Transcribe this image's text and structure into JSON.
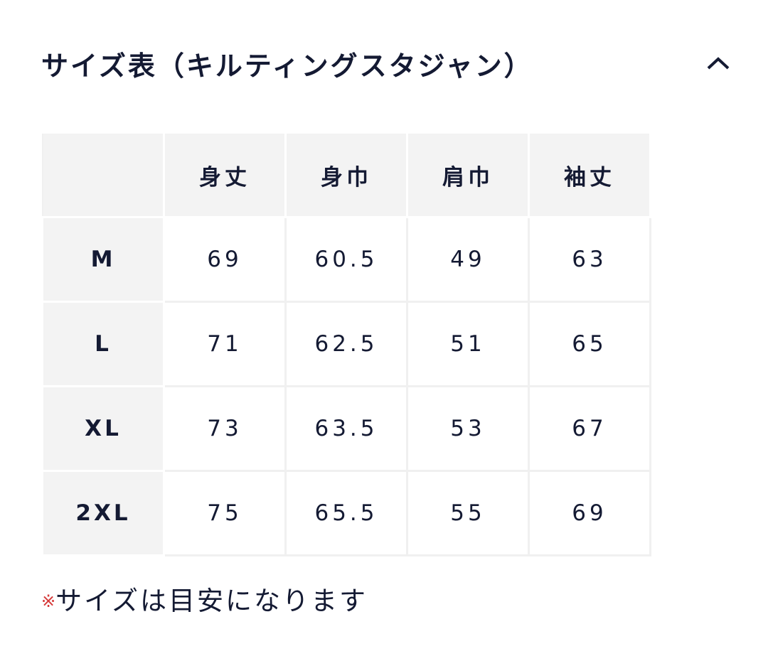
{
  "header": {
    "title": "サイズ表（キルティングスタジャン）",
    "collapse_icon": "chevron-up-icon"
  },
  "table": {
    "columns": [
      "",
      "身丈",
      "身巾",
      "肩巾",
      "袖丈"
    ],
    "rows": [
      {
        "size": "M",
        "values": [
          "69",
          "60.5",
          "49",
          "63"
        ]
      },
      {
        "size": "L",
        "values": [
          "71",
          "62.5",
          "51",
          "65"
        ]
      },
      {
        "size": "XL",
        "values": [
          "73",
          "63.5",
          "53",
          "67"
        ]
      },
      {
        "size": "2XL",
        "values": [
          "75",
          "65.5",
          "55",
          "69"
        ]
      }
    ]
  },
  "note": {
    "mark": "※",
    "text": "サイズは目安になります",
    "mark_color": "#d63a3a"
  }
}
